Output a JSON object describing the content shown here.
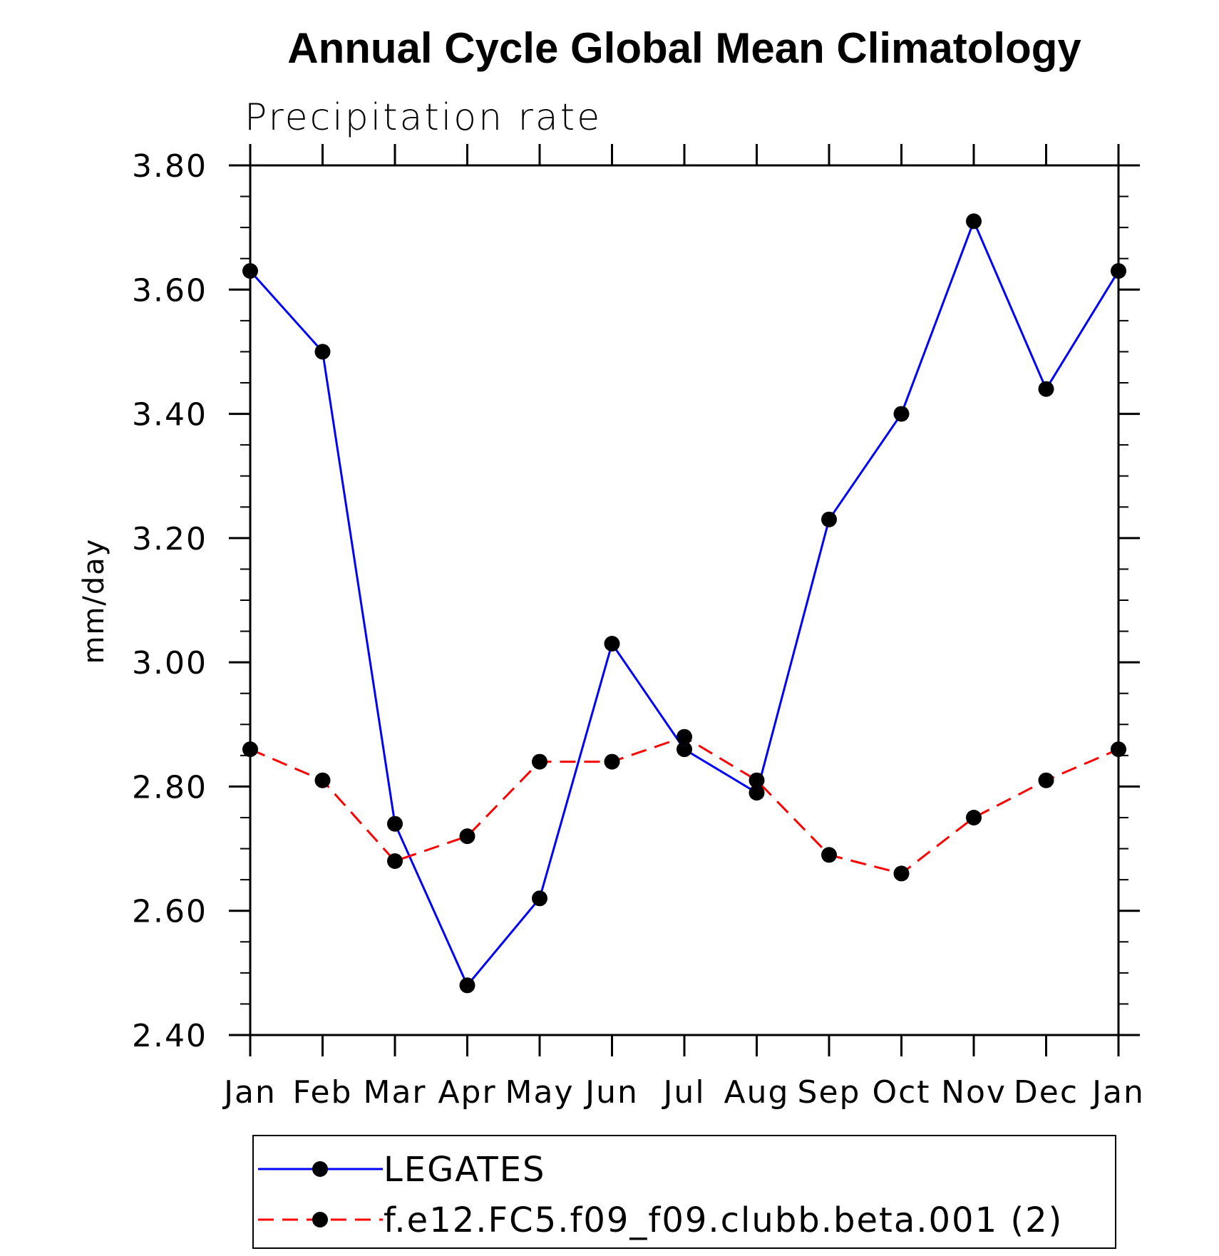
{
  "chart_data": {
    "type": "line",
    "title": "Annual Cycle Global Mean Climatology",
    "subtitle": "Precipitation rate",
    "xlabel": "",
    "ylabel": "mm/day",
    "categories": [
      "Jan",
      "Feb",
      "Mar",
      "Apr",
      "May",
      "Jun",
      "Jul",
      "Aug",
      "Sep",
      "Oct",
      "Nov",
      "Dec",
      "Jan"
    ],
    "y_tick_labels": [
      "2.40",
      "2.60",
      "2.80",
      "3.00",
      "3.20",
      "3.40",
      "3.60",
      "3.80"
    ],
    "y_ticks": [
      2.4,
      2.6,
      2.8,
      3.0,
      3.2,
      3.4,
      3.6,
      3.8
    ],
    "ylim": [
      2.4,
      3.8
    ],
    "grid": false,
    "legend_position": "bottom",
    "series": [
      {
        "name": "LEGATES",
        "values": [
          3.63,
          3.5,
          2.74,
          2.48,
          2.62,
          3.03,
          2.86,
          2.79,
          3.23,
          3.4,
          3.71,
          3.44,
          3.63
        ],
        "color": "#0000ff",
        "line_style": "solid",
        "marker": "filled-circle"
      },
      {
        "name": "f.e12.FC5.f09_f09.clubb.beta.001 (2)",
        "values": [
          2.86,
          2.81,
          2.68,
          2.72,
          2.84,
          2.84,
          2.88,
          2.81,
          2.69,
          2.66,
          2.75,
          2.81,
          2.86
        ],
        "color": "#ff0000",
        "line_style": "dashed",
        "marker": "filled-circle"
      }
    ]
  }
}
